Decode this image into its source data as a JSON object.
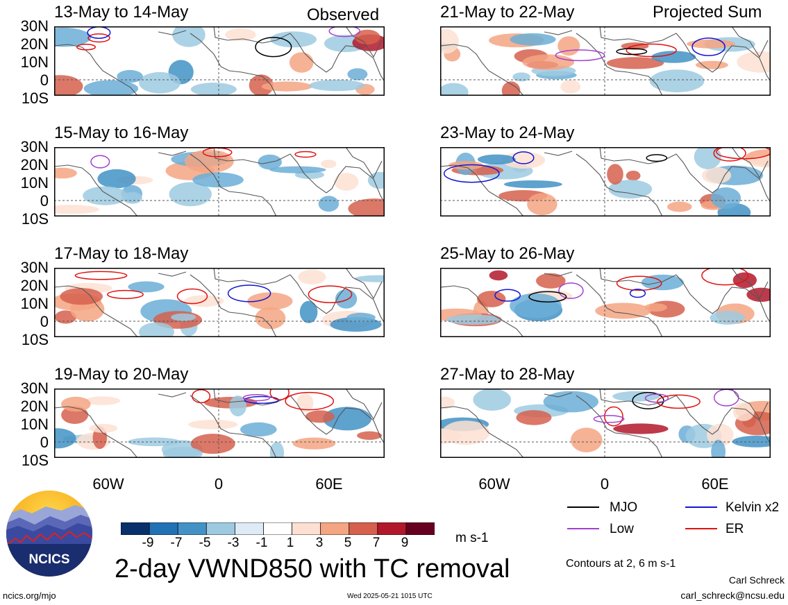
{
  "header": {
    "observed_label": "Observed",
    "projected_label": "Projected Sum"
  },
  "panels": [
    {
      "id": "p1",
      "title": "13-May to 14-May"
    },
    {
      "id": "p2",
      "title": "15-May to 16-May"
    },
    {
      "id": "p3",
      "title": "17-May to 18-May"
    },
    {
      "id": "p4",
      "title": "19-May to 20-May"
    },
    {
      "id": "p5",
      "title": "21-May to 22-May"
    },
    {
      "id": "p6",
      "title": "23-May to 24-May"
    },
    {
      "id": "p7",
      "title": "25-May to 26-May"
    },
    {
      "id": "p8",
      "title": "27-May to 28-May"
    }
  ],
  "axes": {
    "lat_labels": [
      "30N",
      "20N",
      "10N",
      "0",
      "10S"
    ],
    "lon_labels": [
      "60W",
      "0",
      "60E"
    ]
  },
  "colorbar": {
    "labels": [
      "-9",
      "-7",
      "-5",
      "-3",
      "-1",
      "1",
      "3",
      "5",
      "7",
      "9"
    ],
    "colors": [
      "#08306b",
      "#2171b5",
      "#4292c6",
      "#9ecae1",
      "#deebf7",
      "#ffffff",
      "#fde0d2",
      "#f4a582",
      "#d6604d",
      "#b2182b",
      "#67001f"
    ],
    "units": "m s-1"
  },
  "legend": {
    "items": [
      {
        "label": "MJO",
        "color": "#000000"
      },
      {
        "label": "Kelvin x2",
        "color": "#1414d2"
      },
      {
        "label": "Low",
        "color": "#a040d0"
      },
      {
        "label": "ER",
        "color": "#e01010"
      }
    ],
    "contours_note": "Contours at 2, 6 m s-1"
  },
  "footer": {
    "main_title": "2-day VWND850 with TC removal",
    "logo_text": "NCICS",
    "url": "ncics.org/mjo",
    "timestamp": "Wed 2025-05-21 1015 UTC",
    "author": "Carl Schreck",
    "email": "carl_schreck@ncsu.edu"
  }
}
